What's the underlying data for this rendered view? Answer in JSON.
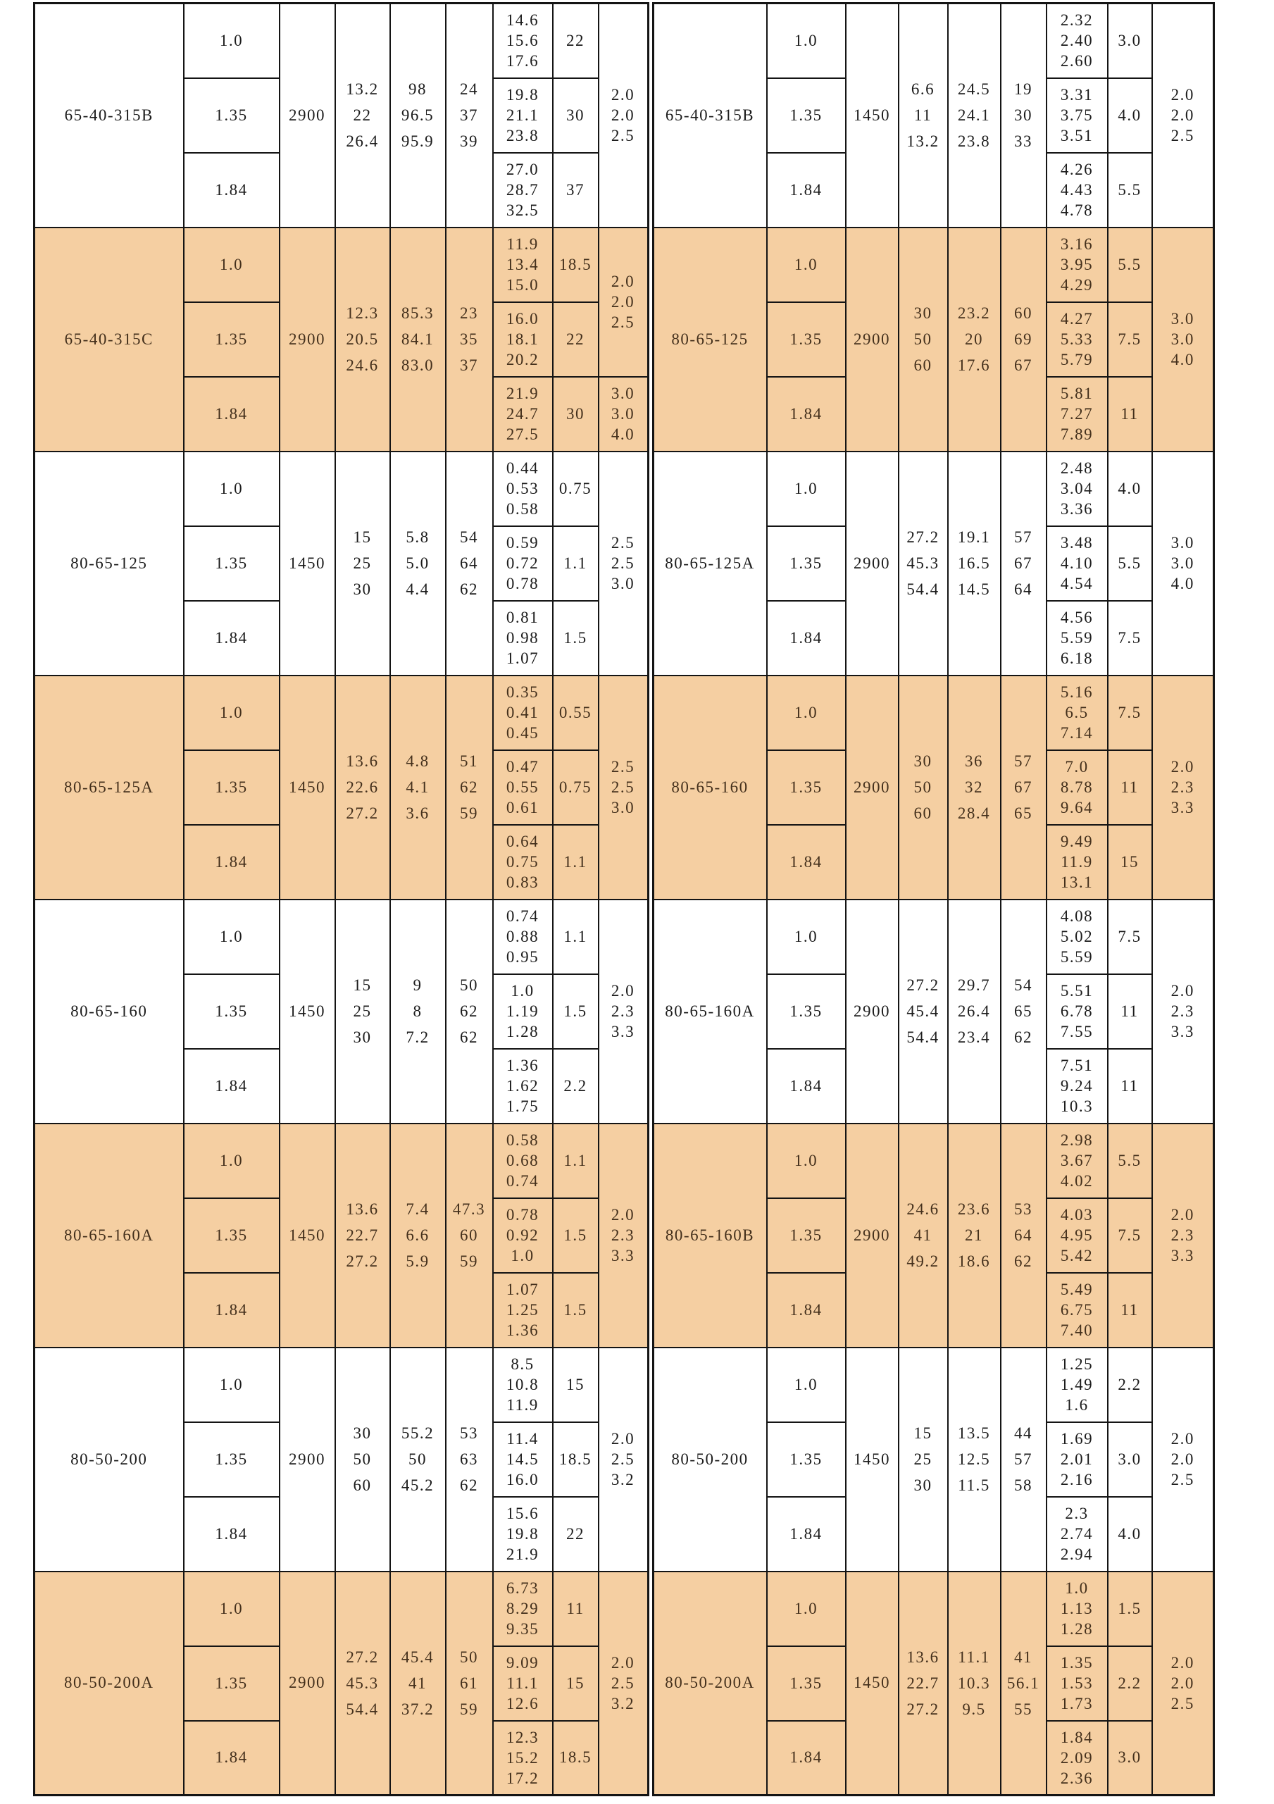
{
  "table_title": "pump-performance-table",
  "accent_color": "#f5cfa2",
  "border_color": "#141414",
  "groups": [
    {
      "shaded": false,
      "left": {
        "model": "65-40-315B",
        "speed": "2900",
        "flow": [
          "13.2",
          "22",
          "26.4"
        ],
        "head": [
          "98",
          "96.5",
          "95.9"
        ],
        "eff": [
          "24",
          "37",
          "39"
        ],
        "rows": [
          {
            "density": "1.0",
            "power": [
              "14.6",
              "15.6",
              "17.6"
            ],
            "motor": "22"
          },
          {
            "density": "1.35",
            "power": [
              "19.8",
              "21.1",
              "23.8"
            ],
            "motor": "30"
          },
          {
            "density": "1.84",
            "power": [
              "27.0",
              "28.7",
              "32.5"
            ],
            "motor": "37"
          }
        ],
        "npsh": {
          "values": [
            "2.0",
            "2.0",
            "2.5"
          ]
        }
      },
      "right": {
        "model": "65-40-315B",
        "speed": "1450",
        "flow": [
          "6.6",
          "11",
          "13.2"
        ],
        "head": [
          "24.5",
          "24.1",
          "23.8"
        ],
        "eff": [
          "19",
          "30",
          "33"
        ],
        "rows": [
          {
            "density": "1.0",
            "power": [
              "2.32",
              "2.40",
              "2.60"
            ],
            "motor": "3.0"
          },
          {
            "density": "1.35",
            "power": [
              "3.31",
              "3.75",
              "3.51"
            ],
            "motor": "4.0"
          },
          {
            "density": "1.84",
            "power": [
              "4.26",
              "4.43",
              "4.78"
            ],
            "motor": "5.5"
          }
        ],
        "npsh": {
          "values": [
            "2.0",
            "2.0",
            "2.5"
          ]
        }
      }
    },
    {
      "shaded": true,
      "left": {
        "model": "65-40-315C",
        "speed": "2900",
        "flow": [
          "12.3",
          "20.5",
          "24.6"
        ],
        "head": [
          "85.3",
          "84.1",
          "83.0"
        ],
        "eff": [
          "23",
          "35",
          "37"
        ],
        "rows": [
          {
            "density": "1.0",
            "power": [
              "11.9",
              "13.4",
              "15.0"
            ],
            "motor": "18.5"
          },
          {
            "density": "1.35",
            "power": [
              "16.0",
              "18.1",
              "20.2"
            ],
            "motor": "22"
          },
          {
            "density": "1.84",
            "power": [
              "21.9",
              "24.7",
              "27.5"
            ],
            "motor": "30"
          }
        ],
        "npsh": {
          "top": [
            "2.0",
            "2.0",
            "2.5"
          ],
          "bottom": [
            "3.0",
            "3.0",
            "4.0"
          ]
        }
      },
      "right": {
        "model": "80-65-125",
        "speed": "2900",
        "flow": [
          "30",
          "50",
          "60"
        ],
        "head": [
          "23.2",
          "20",
          "17.6"
        ],
        "eff": [
          "60",
          "69",
          "67"
        ],
        "rows": [
          {
            "density": "1.0",
            "power": [
              "3.16",
              "3.95",
              "4.29"
            ],
            "motor": "5.5"
          },
          {
            "density": "1.35",
            "power": [
              "4.27",
              "5.33",
              "5.79"
            ],
            "motor": "7.5"
          },
          {
            "density": "1.84",
            "power": [
              "5.81",
              "7.27",
              "7.89"
            ],
            "motor": "11"
          }
        ],
        "npsh": {
          "values": [
            "3.0",
            "3.0",
            "4.0"
          ]
        }
      }
    },
    {
      "shaded": false,
      "left": {
        "model": "80-65-125",
        "speed": "1450",
        "flow": [
          "15",
          "25",
          "30"
        ],
        "head": [
          "5.8",
          "5.0",
          "4.4"
        ],
        "eff": [
          "54",
          "64",
          "62"
        ],
        "rows": [
          {
            "density": "1.0",
            "power": [
              "0.44",
              "0.53",
              "0.58"
            ],
            "motor": "0.75"
          },
          {
            "density": "1.35",
            "power": [
              "0.59",
              "0.72",
              "0.78"
            ],
            "motor": "1.1"
          },
          {
            "density": "1.84",
            "power": [
              "0.81",
              "0.98",
              "1.07"
            ],
            "motor": "1.5"
          }
        ],
        "npsh": {
          "values": [
            "2.5",
            "2.5",
            "3.0"
          ]
        }
      },
      "right": {
        "model": "80-65-125A",
        "speed": "2900",
        "flow": [
          "27.2",
          "45.3",
          "54.4"
        ],
        "head": [
          "19.1",
          "16.5",
          "14.5"
        ],
        "eff": [
          "57",
          "67",
          "64"
        ],
        "rows": [
          {
            "density": "1.0",
            "power": [
              "2.48",
              "3.04",
              "3.36"
            ],
            "motor": "4.0"
          },
          {
            "density": "1.35",
            "power": [
              "3.48",
              "4.10",
              "4.54"
            ],
            "motor": "5.5"
          },
          {
            "density": "1.84",
            "power": [
              "4.56",
              "5.59",
              "6.18"
            ],
            "motor": "7.5"
          }
        ],
        "npsh": {
          "values": [
            "3.0",
            "3.0",
            "4.0"
          ]
        }
      }
    },
    {
      "shaded": true,
      "left": {
        "model": "80-65-125A",
        "speed": "1450",
        "flow": [
          "13.6",
          "22.6",
          "27.2"
        ],
        "head": [
          "4.8",
          "4.1",
          "3.6"
        ],
        "eff": [
          "51",
          "62",
          "59"
        ],
        "rows": [
          {
            "density": "1.0",
            "power": [
              "0.35",
              "0.41",
              "0.45"
            ],
            "motor": "0.55"
          },
          {
            "density": "1.35",
            "power": [
              "0.47",
              "0.55",
              "0.61"
            ],
            "motor": "0.75"
          },
          {
            "density": "1.84",
            "power": [
              "0.64",
              "0.75",
              "0.83"
            ],
            "motor": "1.1"
          }
        ],
        "npsh": {
          "values": [
            "2.5",
            "2.5",
            "3.0"
          ]
        }
      },
      "right": {
        "model": "80-65-160",
        "speed": "2900",
        "flow": [
          "30",
          "50",
          "60"
        ],
        "head": [
          "36",
          "32",
          "28.4"
        ],
        "eff": [
          "57",
          "67",
          "65"
        ],
        "rows": [
          {
            "density": "1.0",
            "power": [
              "5.16",
              "6.5",
              "7.14"
            ],
            "motor": "7.5"
          },
          {
            "density": "1.35",
            "power": [
              "7.0",
              "8.78",
              "9.64"
            ],
            "motor": "11"
          },
          {
            "density": "1.84",
            "power": [
              "9.49",
              "11.9",
              "13.1"
            ],
            "motor": "15"
          }
        ],
        "npsh": {
          "values": [
            "2.0",
            "2.3",
            "3.3"
          ]
        }
      }
    },
    {
      "shaded": false,
      "left": {
        "model": "80-65-160",
        "speed": "1450",
        "flow": [
          "15",
          "25",
          "30"
        ],
        "head": [
          "9",
          "8",
          "7.2"
        ],
        "eff": [
          "50",
          "62",
          "62"
        ],
        "rows": [
          {
            "density": "1.0",
            "power": [
              "0.74",
              "0.88",
              "0.95"
            ],
            "motor": "1.1"
          },
          {
            "density": "1.35",
            "power": [
              "1.0",
              "1.19",
              "1.28"
            ],
            "motor": "1.5"
          },
          {
            "density": "1.84",
            "power": [
              "1.36",
              "1.62",
              "1.75"
            ],
            "motor": "2.2"
          }
        ],
        "npsh": {
          "values": [
            "2.0",
            "2.3",
            "3.3"
          ]
        }
      },
      "right": {
        "model": "80-65-160A",
        "speed": "2900",
        "flow": [
          "27.2",
          "45.4",
          "54.4"
        ],
        "head": [
          "29.7",
          "26.4",
          "23.4"
        ],
        "eff": [
          "54",
          "65",
          "62"
        ],
        "rows": [
          {
            "density": "1.0",
            "power": [
              "4.08",
              "5.02",
              "5.59"
            ],
            "motor": "7.5"
          },
          {
            "density": "1.35",
            "power": [
              "5.51",
              "6.78",
              "7.55"
            ],
            "motor": "11"
          },
          {
            "density": "1.84",
            "power": [
              "7.51",
              "9.24",
              "10.3"
            ],
            "motor": "11"
          }
        ],
        "npsh": {
          "values": [
            "2.0",
            "2.3",
            "3.3"
          ]
        }
      }
    },
    {
      "shaded": true,
      "left": {
        "model": "80-65-160A",
        "speed": "1450",
        "flow": [
          "13.6",
          "22.7",
          "27.2"
        ],
        "head": [
          "7.4",
          "6.6",
          "5.9"
        ],
        "eff": [
          "47.3",
          "60",
          "59"
        ],
        "rows": [
          {
            "density": "1.0",
            "power": [
              "0.58",
              "0.68",
              "0.74"
            ],
            "motor": "1.1"
          },
          {
            "density": "1.35",
            "power": [
              "0.78",
              "0.92",
              "1.0"
            ],
            "motor": "1.5"
          },
          {
            "density": "1.84",
            "power": [
              "1.07",
              "1.25",
              "1.36"
            ],
            "motor": "1.5"
          }
        ],
        "npsh": {
          "values": [
            "2.0",
            "2.3",
            "3.3"
          ]
        }
      },
      "right": {
        "model": "80-65-160B",
        "speed": "2900",
        "flow": [
          "24.6",
          "41",
          "49.2"
        ],
        "head": [
          "23.6",
          "21",
          "18.6"
        ],
        "eff": [
          "53",
          "64",
          "62"
        ],
        "rows": [
          {
            "density": "1.0",
            "power": [
              "2.98",
              "3.67",
              "4.02"
            ],
            "motor": "5.5"
          },
          {
            "density": "1.35",
            "power": [
              "4.03",
              "4.95",
              "5.42"
            ],
            "motor": "7.5"
          },
          {
            "density": "1.84",
            "power": [
              "5.49",
              "6.75",
              "7.40"
            ],
            "motor": "11"
          }
        ],
        "npsh": {
          "values": [
            "2.0",
            "2.3",
            "3.3"
          ]
        }
      }
    },
    {
      "shaded": false,
      "left": {
        "model": "80-50-200",
        "speed": "2900",
        "flow": [
          "30",
          "50",
          "60"
        ],
        "head": [
          "55.2",
          "50",
          "45.2"
        ],
        "eff": [
          "53",
          "63",
          "62"
        ],
        "rows": [
          {
            "density": "1.0",
            "power": [
              "8.5",
              "10.8",
              "11.9"
            ],
            "motor": "15"
          },
          {
            "density": "1.35",
            "power": [
              "11.4",
              "14.5",
              "16.0"
            ],
            "motor": "18.5"
          },
          {
            "density": "1.84",
            "power": [
              "15.6",
              "19.8",
              "21.9"
            ],
            "motor": "22"
          }
        ],
        "npsh": {
          "values": [
            "2.0",
            "2.5",
            "3.2"
          ]
        }
      },
      "right": {
        "model": "80-50-200",
        "speed": "1450",
        "flow": [
          "15",
          "25",
          "30"
        ],
        "head": [
          "13.5",
          "12.5",
          "11.5"
        ],
        "eff": [
          "44",
          "57",
          "58"
        ],
        "rows": [
          {
            "density": "1.0",
            "power": [
              "1.25",
              "1.49",
              "1.6"
            ],
            "motor": "2.2"
          },
          {
            "density": "1.35",
            "power": [
              "1.69",
              "2.01",
              "2.16"
            ],
            "motor": "3.0"
          },
          {
            "density": "1.84",
            "power": [
              "2.3",
              "2.74",
              "2.94"
            ],
            "motor": "4.0"
          }
        ],
        "npsh": {
          "values": [
            "2.0",
            "2.0",
            "2.5"
          ]
        }
      }
    },
    {
      "shaded": true,
      "left": {
        "model": "80-50-200A",
        "speed": "2900",
        "flow": [
          "27.2",
          "45.3",
          "54.4"
        ],
        "head": [
          "45.4",
          "41",
          "37.2"
        ],
        "eff": [
          "50",
          "61",
          "59"
        ],
        "rows": [
          {
            "density": "1.0",
            "power": [
              "6.73",
              "8.29",
              "9.35"
            ],
            "motor": "11"
          },
          {
            "density": "1.35",
            "power": [
              "9.09",
              "11.1",
              "12.6"
            ],
            "motor": "15"
          },
          {
            "density": "1.84",
            "power": [
              "12.3",
              "15.2",
              "17.2"
            ],
            "motor": "18.5"
          }
        ],
        "npsh": {
          "values": [
            "2.0",
            "2.5",
            "3.2"
          ]
        }
      },
      "right": {
        "model": "80-50-200A",
        "speed": "1450",
        "flow": [
          "13.6",
          "22.7",
          "27.2"
        ],
        "head": [
          "11.1",
          "10.3",
          "9.5"
        ],
        "eff": [
          "41",
          "56.1",
          "55"
        ],
        "rows": [
          {
            "density": "1.0",
            "power": [
              "1.0",
              "1.13",
              "1.28"
            ],
            "motor": "1.5"
          },
          {
            "density": "1.35",
            "power": [
              "1.35",
              "1.53",
              "1.73"
            ],
            "motor": "2.2"
          },
          {
            "density": "1.84",
            "power": [
              "1.84",
              "2.09",
              "2.36"
            ],
            "motor": "3.0"
          }
        ],
        "npsh": {
          "values": [
            "2.0",
            "2.0",
            "2.5"
          ]
        }
      }
    }
  ]
}
